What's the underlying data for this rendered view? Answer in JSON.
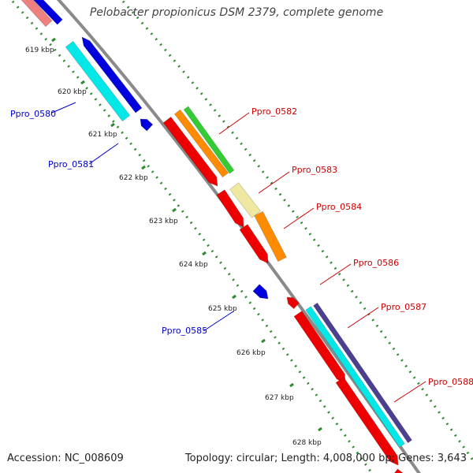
{
  "title": "Pelobacter propionicus DSM 2379, complete genome",
  "footer": {
    "accession": "Accession: NC_008609",
    "summary": "Topology: circular; Length: 4,008,000 bp; Genes: 3,643"
  },
  "kbp_labels": [
    "619 kbp",
    "620 kbp",
    "621 kbp",
    "622 kbp",
    "623 kbp",
    "624 kbp",
    "625 kbp",
    "626 kbp",
    "627 kbp",
    "628 kbp"
  ],
  "gene_labels": {
    "Ppro_0580": "Ppro_0580",
    "Ppro_0581": "Ppro_0581",
    "Ppro_0582": "Ppro_0582",
    "Ppro_0583": "Ppro_0583",
    "Ppro_0584": "Ppro_0584",
    "Ppro_0585": "Ppro_0585",
    "Ppro_0586": "Ppro_0586",
    "Ppro_0587": "Ppro_0587",
    "Ppro_0588": "Ppro_0588"
  },
  "colors": {
    "backbone": "#8a8a8a",
    "tick_green": "#2e8b2e",
    "label_blue": "#0000cc",
    "label_red": "#cc0000",
    "gene_blue": "#0000dd",
    "gene_cyan": "#00e8e8",
    "gene_red": "#ee0000",
    "gene_orange": "#ff8c00",
    "gene_green": "#33cc33",
    "gene_khaki": "#eee8a0",
    "gene_purple": "#4b3f8f",
    "gene_pink": "#f08080"
  }
}
